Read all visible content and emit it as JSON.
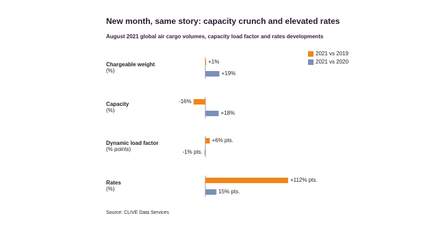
{
  "chart_data": {
    "type": "bar",
    "orientation": "horizontal",
    "title": "New month, same story: capacity crunch and elevated rates",
    "subtitle": "August 2021 global air cargo volumes, capacity load factor and rates developments",
    "categories": [
      "Chargeable weight",
      "Capacity",
      "Dynamic load factor",
      "Rates"
    ],
    "category_units": [
      "(%)",
      "(%)",
      "(% points)",
      "(%)"
    ],
    "series": [
      {
        "name": "2021 vs 2019",
        "color": "#f0861a",
        "values": [
          1,
          -16,
          6,
          112
        ],
        "value_labels": [
          "+1%",
          "-16%",
          "+6% pts.",
          "+112% pts."
        ]
      },
      {
        "name": "2021 vs 2020",
        "color": "#7b8fb9",
        "values": [
          19,
          18,
          -1,
          15
        ],
        "value_labels": [
          "+19%",
          "+18%",
          "-1% pts.",
          "15% pts."
        ]
      }
    ],
    "source": "Source: CLIVE Data Services"
  }
}
